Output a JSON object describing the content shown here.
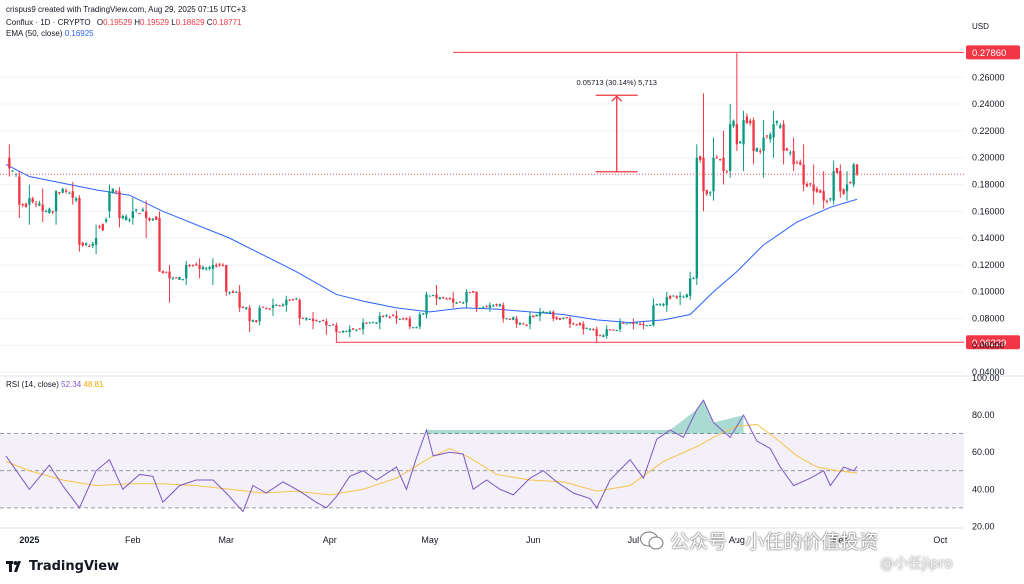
{
  "header": {
    "created_by": "crispus9 created with TradingView.com, Aug 29, 2025 07:15 UTC+3",
    "symbol_line": "Conflux · 1D · CRYPTO",
    "o_label": "O",
    "o_value": "0.19529",
    "h_label": "H",
    "h_value": "0.19529",
    "l_label": "L",
    "l_value": "0.18629",
    "c_label": "C",
    "c_value": "0.18771",
    "ema_label": "EMA (50, close)",
    "ema_value": "0.16925",
    "rsi_label": "RSI (14, close)",
    "rsi_value": "52.34",
    "rsi_ma_value": "48.81"
  },
  "currency": "USD",
  "logo_text": "TradingView",
  "watermark": {
    "main": "公众号 · 小任的价值投资",
    "sub": "@小任jipro"
  },
  "colors": {
    "up": "#089981",
    "down": "#f23645",
    "ema": "#2962ff",
    "rsi": "#7e57c2",
    "rsi_ma": "#f7c34a",
    "level": "#f23645"
  },
  "chart_data": [
    {
      "type": "candlestick",
      "title": "Conflux · 1D · CRYPTO",
      "y_unit": "USD",
      "ylim": [
        0.04,
        0.29
      ],
      "y_ticks": [
        "0.26000",
        "0.24000",
        "0.22000",
        "0.20000",
        "0.18000",
        "0.16000",
        "0.14000",
        "0.12000",
        "0.10000",
        "0.08000",
        "0.06000",
        "0.04000"
      ],
      "x_ticks": [
        "2025",
        "Feb",
        "Mar",
        "Apr",
        "May",
        "Jun",
        "Jul",
        "Aug",
        "Sep",
        "Oct"
      ],
      "x_tick_days": [
        0,
        31,
        59,
        90,
        120,
        151,
        181,
        212,
        243,
        273
      ],
      "xlim_days": [
        -7,
        283
      ],
      "horizontal_levels": [
        {
          "label": "0.27860",
          "value": 0.2786,
          "from_day": 127
        },
        {
          "label": "0.06229",
          "value": 0.06229,
          "from_day": 92
        }
      ],
      "current_price_line": 0.18771,
      "measure": {
        "label": "0.05713 (30.14%) 5,713",
        "from_value": 0.1895,
        "to_value": 0.2466,
        "day": 176
      },
      "ohlc_anchors": [
        [
          -6,
          0.2,
          0.21,
          0.186,
          0.192
        ],
        [
          -3,
          0.186,
          0.19,
          0.155,
          0.165
        ],
        [
          0,
          0.165,
          0.18,
          0.15,
          0.17
        ],
        [
          4,
          0.165,
          0.177,
          0.152,
          0.16
        ],
        [
          8,
          0.16,
          0.176,
          0.15,
          0.175
        ],
        [
          13,
          0.175,
          0.182,
          0.165,
          0.17
        ],
        [
          15,
          0.17,
          0.172,
          0.13,
          0.135
        ],
        [
          20,
          0.135,
          0.15,
          0.128,
          0.14
        ],
        [
          24,
          0.16,
          0.18,
          0.155,
          0.175
        ],
        [
          27,
          0.175,
          0.178,
          0.148,
          0.155
        ],
        [
          31,
          0.155,
          0.17,
          0.15,
          0.16
        ],
        [
          35,
          0.16,
          0.168,
          0.14,
          0.155
        ],
        [
          39,
          0.155,
          0.16,
          0.115,
          0.115
        ],
        [
          42,
          0.115,
          0.12,
          0.092,
          0.11
        ],
        [
          47,
          0.11,
          0.123,
          0.105,
          0.12
        ],
        [
          51,
          0.12,
          0.125,
          0.11,
          0.117
        ],
        [
          55,
          0.117,
          0.125,
          0.105,
          0.12
        ],
        [
          59,
          0.12,
          0.12,
          0.097,
          0.1
        ],
        [
          63,
          0.1,
          0.105,
          0.085,
          0.088
        ],
        [
          66,
          0.088,
          0.09,
          0.07,
          0.078
        ],
        [
          69,
          0.078,
          0.09,
          0.075,
          0.088
        ],
        [
          73,
          0.088,
          0.095,
          0.082,
          0.09
        ],
        [
          77,
          0.09,
          0.097,
          0.085,
          0.094
        ],
        [
          81,
          0.094,
          0.095,
          0.075,
          0.08
        ],
        [
          85,
          0.08,
          0.085,
          0.072,
          0.078
        ],
        [
          89,
          0.078,
          0.08,
          0.068,
          0.075
        ],
        [
          92,
          0.075,
          0.077,
          0.062,
          0.07
        ],
        [
          96,
          0.07,
          0.075,
          0.066,
          0.072
        ],
        [
          100,
          0.072,
          0.08,
          0.068,
          0.077
        ],
        [
          105,
          0.077,
          0.085,
          0.072,
          0.082
        ],
        [
          110,
          0.082,
          0.086,
          0.076,
          0.08
        ],
        [
          114,
          0.08,
          0.082,
          0.072,
          0.074
        ],
        [
          117,
          0.074,
          0.085,
          0.072,
          0.083
        ],
        [
          119,
          0.083,
          0.1,
          0.08,
          0.098
        ],
        [
          122,
          0.098,
          0.105,
          0.09,
          0.095
        ],
        [
          127,
          0.095,
          0.1,
          0.088,
          0.092
        ],
        [
          131,
          0.092,
          0.102,
          0.088,
          0.1
        ],
        [
          134,
          0.1,
          0.1,
          0.085,
          0.088
        ],
        [
          138,
          0.088,
          0.092,
          0.085,
          0.09
        ],
        [
          142,
          0.09,
          0.092,
          0.077,
          0.08
        ],
        [
          146,
          0.08,
          0.082,
          0.073,
          0.076
        ],
        [
          150,
          0.076,
          0.085,
          0.072,
          0.082
        ],
        [
          153,
          0.082,
          0.088,
          0.078,
          0.085
        ],
        [
          157,
          0.085,
          0.086,
          0.078,
          0.08
        ],
        [
          162,
          0.08,
          0.082,
          0.073,
          0.076
        ],
        [
          166,
          0.076,
          0.078,
          0.068,
          0.072
        ],
        [
          170,
          0.072,
          0.074,
          0.062,
          0.067
        ],
        [
          173,
          0.067,
          0.075,
          0.065,
          0.072
        ],
        [
          177,
          0.072,
          0.08,
          0.07,
          0.077
        ],
        [
          181,
          0.077,
          0.08,
          0.072,
          0.076
        ],
        [
          184,
          0.076,
          0.078,
          0.072,
          0.075
        ],
        [
          187,
          0.075,
          0.095,
          0.074,
          0.09
        ],
        [
          191,
          0.09,
          0.1,
          0.085,
          0.096
        ],
        [
          195,
          0.096,
          0.1,
          0.09,
          0.097
        ],
        [
          198,
          0.097,
          0.115,
          0.094,
          0.11
        ],
        [
          200,
          0.11,
          0.21,
          0.105,
          0.2
        ],
        [
          202,
          0.2,
          0.248,
          0.16,
          0.175
        ],
        [
          205,
          0.175,
          0.215,
          0.168,
          0.2
        ],
        [
          208,
          0.2,
          0.22,
          0.18,
          0.19
        ],
        [
          210,
          0.19,
          0.24,
          0.185,
          0.225
        ],
        [
          212,
          0.225,
          0.278,
          0.205,
          0.21
        ],
        [
          214,
          0.21,
          0.235,
          0.19,
          0.228
        ],
        [
          217,
          0.228,
          0.23,
          0.195,
          0.205
        ],
        [
          220,
          0.205,
          0.228,
          0.185,
          0.215
        ],
        [
          223,
          0.215,
          0.235,
          0.2,
          0.225
        ],
        [
          226,
          0.225,
          0.228,
          0.195,
          0.205
        ],
        [
          229,
          0.205,
          0.215,
          0.19,
          0.195
        ],
        [
          232,
          0.195,
          0.21,
          0.175,
          0.18
        ],
        [
          235,
          0.18,
          0.195,
          0.165,
          0.175
        ],
        [
          238,
          0.175,
          0.19,
          0.162,
          0.168
        ],
        [
          241,
          0.168,
          0.198,
          0.165,
          0.19
        ],
        [
          243,
          0.19,
          0.195,
          0.17,
          0.175
        ],
        [
          245,
          0.175,
          0.19,
          0.168,
          0.18
        ],
        [
          247,
          0.18,
          0.196,
          0.178,
          0.195
        ],
        [
          248,
          0.195,
          0.1953,
          0.1863,
          0.1877
        ]
      ],
      "ema50": [
        [
          -7,
          0.195
        ],
        [
          0,
          0.186
        ],
        [
          20,
          0.176
        ],
        [
          30,
          0.172
        ],
        [
          40,
          0.16
        ],
        [
          60,
          0.14
        ],
        [
          80,
          0.115
        ],
        [
          92,
          0.098
        ],
        [
          100,
          0.093
        ],
        [
          110,
          0.088
        ],
        [
          120,
          0.085
        ],
        [
          130,
          0.088
        ],
        [
          140,
          0.087
        ],
        [
          150,
          0.085
        ],
        [
          160,
          0.083
        ],
        [
          170,
          0.079
        ],
        [
          180,
          0.077
        ],
        [
          190,
          0.079
        ],
        [
          198,
          0.083
        ],
        [
          205,
          0.1
        ],
        [
          212,
          0.115
        ],
        [
          220,
          0.135
        ],
        [
          230,
          0.152
        ],
        [
          240,
          0.163
        ],
        [
          248,
          0.169
        ]
      ]
    },
    {
      "type": "line",
      "title": "RSI (14, close)",
      "ylim": [
        20,
        100
      ],
      "y_ticks": [
        "100.00",
        "80.00",
        "60.00",
        "40.00",
        "20.00"
      ],
      "bands": {
        "upper": 70,
        "middle": 50,
        "lower": 30
      },
      "series": [
        {
          "name": "RSI",
          "values": [
            [
              -7,
              58
            ],
            [
              0,
              40
            ],
            [
              6,
              53
            ],
            [
              10,
              42
            ],
            [
              15,
              30
            ],
            [
              20,
              50
            ],
            [
              24,
              56
            ],
            [
              28,
              40
            ],
            [
              33,
              48
            ],
            [
              37,
              47
            ],
            [
              40,
              33
            ],
            [
              45,
              42
            ],
            [
              50,
              45
            ],
            [
              55,
              45
            ],
            [
              59,
              38
            ],
            [
              64,
              28
            ],
            [
              67,
              42
            ],
            [
              71,
              38
            ],
            [
              76,
              44
            ],
            [
              81,
              39
            ],
            [
              86,
              33
            ],
            [
              89,
              30
            ],
            [
              92,
              36
            ],
            [
              96,
              47
            ],
            [
              100,
              50
            ],
            [
              104,
              45
            ],
            [
              110,
              52
            ],
            [
              113,
              40
            ],
            [
              116,
              57
            ],
            [
              119,
              72
            ],
            [
              121,
              58
            ],
            [
              126,
              60
            ],
            [
              130,
              59
            ],
            [
              133,
              40
            ],
            [
              137,
              45
            ],
            [
              141,
              40
            ],
            [
              145,
              37
            ],
            [
              150,
              46
            ],
            [
              154,
              50
            ],
            [
              158,
              44
            ],
            [
              163,
              38
            ],
            [
              168,
              35
            ],
            [
              170,
              30
            ],
            [
              174,
              45
            ],
            [
              180,
              56
            ],
            [
              184,
              46
            ],
            [
              188,
              67
            ],
            [
              192,
              72
            ],
            [
              196,
              68
            ],
            [
              200,
              83
            ],
            [
              202,
              88
            ],
            [
              205,
              76
            ],
            [
              210,
              68
            ],
            [
              214,
              80
            ],
            [
              218,
              66
            ],
            [
              222,
              62
            ],
            [
              225,
              52
            ],
            [
              229,
              42
            ],
            [
              234,
              46
            ],
            [
              238,
              50
            ],
            [
              240,
              42
            ],
            [
              244,
              52
            ],
            [
              247,
              50
            ],
            [
              248,
              52.3
            ]
          ]
        },
        {
          "name": "MA",
          "values": [
            [
              -7,
              55
            ],
            [
              0,
              50
            ],
            [
              10,
              45
            ],
            [
              20,
              42
            ],
            [
              30,
              43
            ],
            [
              40,
              43
            ],
            [
              50,
              42
            ],
            [
              60,
              40
            ],
            [
              70,
              38
            ],
            [
              80,
              39
            ],
            [
              90,
              37
            ],
            [
              100,
              40
            ],
            [
              110,
              46
            ],
            [
              120,
              57
            ],
            [
              126,
              62
            ],
            [
              132,
              57
            ],
            [
              140,
              48
            ],
            [
              150,
              45
            ],
            [
              160,
              44
            ],
            [
              170,
              39
            ],
            [
              180,
              42
            ],
            [
              190,
              55
            ],
            [
              200,
              63
            ],
            [
              205,
              68
            ],
            [
              212,
              74
            ],
            [
              218,
              75
            ],
            [
              224,
              67
            ],
            [
              230,
              58
            ],
            [
              236,
              52
            ],
            [
              242,
              50
            ],
            [
              248,
              48.8
            ]
          ]
        }
      ]
    }
  ]
}
